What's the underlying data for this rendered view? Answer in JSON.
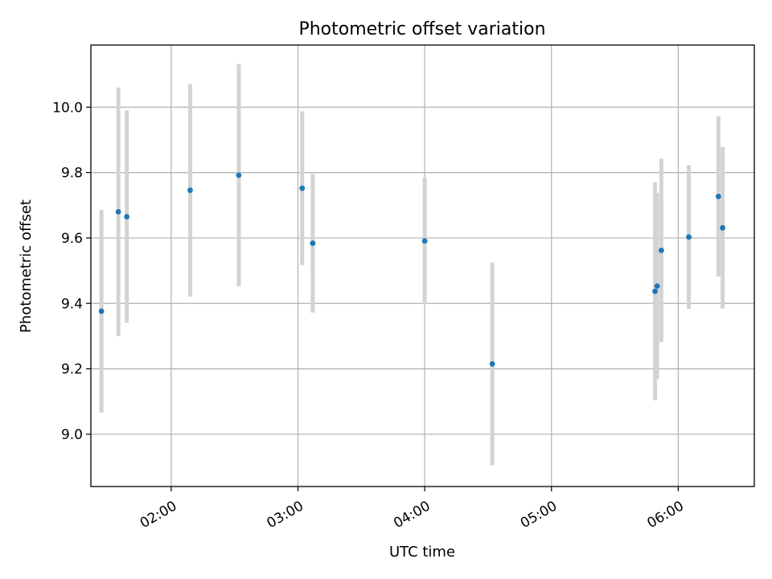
{
  "chart_data": {
    "type": "scatter",
    "title": "Photometric offset variation",
    "xlabel": "UTC time",
    "ylabel": "Photometric offset",
    "x_tick_labels": [
      "02:00",
      "03:00",
      "04:00",
      "05:00",
      "06:00"
    ],
    "x_ticks": [
      "02:00",
      "03:00",
      "04:00",
      "05:00",
      "06:00"
    ],
    "y_ticks": [
      9.0,
      9.2,
      9.4,
      9.6,
      9.8,
      10.0
    ],
    "y_tick_labels": [
      "9.0",
      "9.2",
      "9.4",
      "9.6",
      "9.8",
      "10.0"
    ],
    "xlim": [
      "01:22",
      "06:36"
    ],
    "ylim": [
      8.84,
      10.19
    ],
    "grid": true,
    "colors": {
      "point": "#1f77b4",
      "errorbar": "#d3d3d3",
      "grid": "#b0b0b0"
    },
    "points": [
      {
        "x": "01:27",
        "y": 9.376,
        "yerr": 0.31
      },
      {
        "x": "01:35",
        "y": 9.68,
        "yerr": 0.38
      },
      {
        "x": "01:39",
        "y": 9.665,
        "yerr": 0.325
      },
      {
        "x": "02:09",
        "y": 9.746,
        "yerr": 0.325
      },
      {
        "x": "02:32",
        "y": 9.792,
        "yerr": 0.34
      },
      {
        "x": "03:02",
        "y": 9.752,
        "yerr": 0.235
      },
      {
        "x": "03:07",
        "y": 9.584,
        "yerr": 0.212
      },
      {
        "x": "04:00",
        "y": 9.591,
        "yerr": 0.194
      },
      {
        "x": "04:32",
        "y": 9.215,
        "yerr": 0.31
      },
      {
        "x": "05:49",
        "y": 9.437,
        "yerr": 0.333
      },
      {
        "x": "05:50",
        "y": 9.453,
        "yerr": 0.285
      },
      {
        "x": "05:52",
        "y": 9.562,
        "yerr": 0.28
      },
      {
        "x": "06:05",
        "y": 9.603,
        "yerr": 0.22
      },
      {
        "x": "06:19",
        "y": 9.727,
        "yerr": 0.245
      },
      {
        "x": "06:21",
        "y": 9.631,
        "yerr": 0.247
      }
    ]
  }
}
